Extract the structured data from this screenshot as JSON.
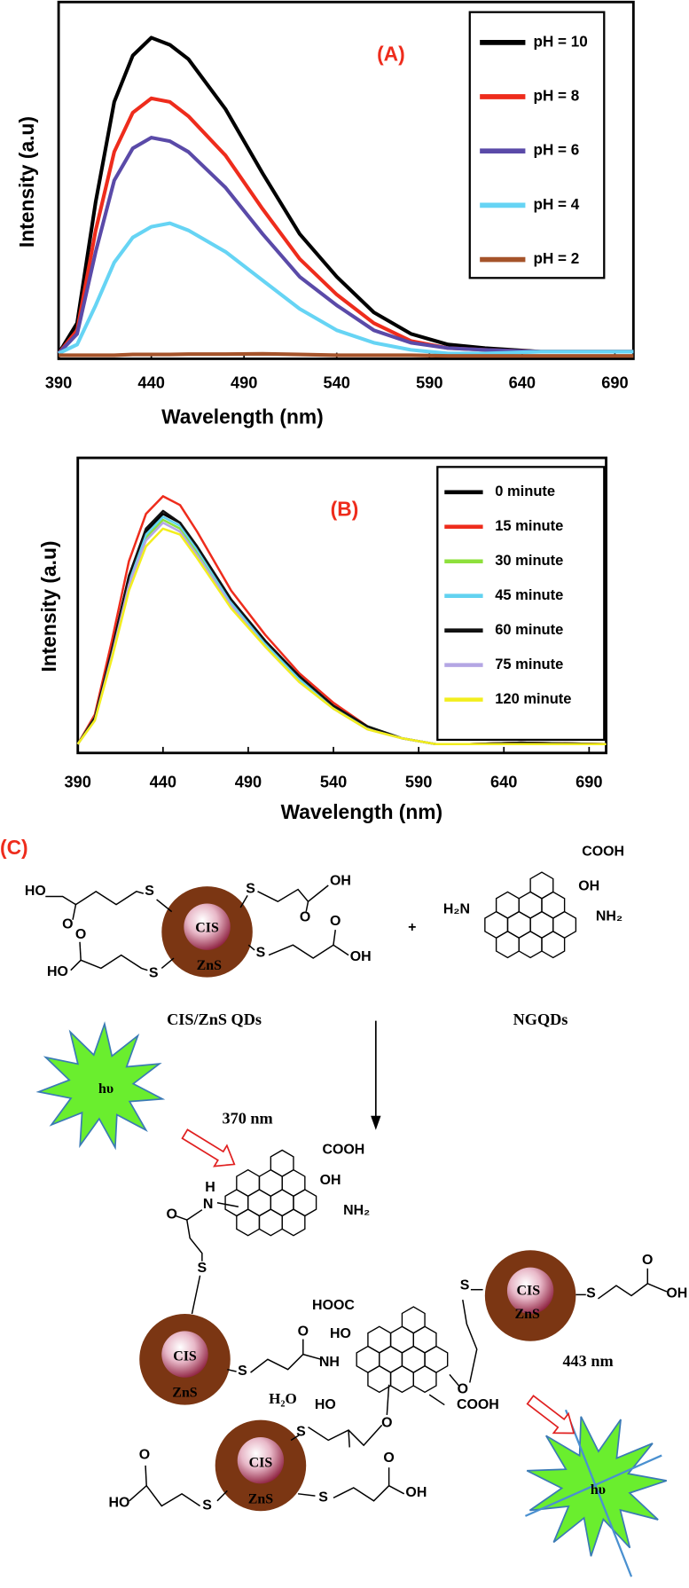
{
  "chart_data": [
    {
      "type": "line",
      "title": "(A)",
      "x_label": "Wavelength (nm)",
      "y_label": "Intensity (a.u)",
      "x": [
        390,
        400,
        410,
        420,
        430,
        440,
        450,
        460,
        480,
        500,
        520,
        540,
        560,
        580,
        600,
        620,
        650,
        700
      ],
      "xlim": [
        390,
        700
      ],
      "xticks": [
        390,
        440,
        490,
        540,
        590,
        640,
        690
      ],
      "ylim": [
        0,
        100
      ],
      "legend": "upper right",
      "series": [
        {
          "name": "pH = 10",
          "color": "#000000",
          "values": [
            1.5,
            10,
            44,
            72,
            85,
            90,
            88,
            84,
            70,
            52,
            35,
            23,
            13,
            7,
            4,
            3,
            2,
            2
          ]
        },
        {
          "name": "pH = 8",
          "color": "#ee2c1c",
          "values": [
            1.5,
            8,
            36,
            58,
            69,
            73,
            72,
            68,
            57,
            42,
            28,
            18,
            10,
            5,
            3,
            2.5,
            2,
            2
          ]
        },
        {
          "name": "pH = 6",
          "color": "#5a4aa8",
          "values": [
            1.5,
            7,
            30,
            50,
            59,
            62,
            61,
            58,
            48,
            35,
            23,
            15,
            8,
            4.5,
            3,
            2.5,
            2,
            2
          ]
        },
        {
          "name": "pH = 4",
          "color": "#66d4f4",
          "values": [
            1.5,
            4,
            15,
            27,
            34,
            37,
            38,
            36,
            30,
            22,
            14,
            8,
            4.5,
            2.5,
            1.5,
            1.5,
            2,
            2
          ]
        },
        {
          "name": "pH = 2",
          "color": "#a5532a",
          "values": [
            1,
            1,
            1,
            1,
            1.2,
            1.2,
            1.2,
            1.3,
            1.3,
            1.4,
            1.2,
            1,
            1,
            1,
            0.8,
            0.8,
            0.8,
            0.8
          ]
        }
      ]
    },
    {
      "type": "line",
      "title": "(B)",
      "x_label": "Wavelength (nm)",
      "y_label": "Intensity (a.u)",
      "x": [
        390,
        400,
        410,
        420,
        430,
        440,
        450,
        460,
        480,
        500,
        520,
        540,
        560,
        580,
        600,
        620,
        650,
        700
      ],
      "xlim": [
        390,
        700
      ],
      "xticks": [
        390,
        440,
        490,
        540,
        590,
        640,
        690
      ],
      "ylim": [
        0,
        100
      ],
      "legend": "upper right",
      "series": [
        {
          "name": "0 minute",
          "color": "#000000",
          "values": [
            3,
            12,
            35,
            60,
            75,
            81,
            78,
            70,
            52,
            38,
            26,
            16,
            9,
            5,
            3,
            3,
            3.5,
            3
          ]
        },
        {
          "name": "15 minute",
          "color": "#ee2c1c",
          "values": [
            3,
            13,
            38,
            65,
            81,
            87,
            84,
            75,
            55,
            40,
            27,
            17,
            9,
            5,
            3,
            3,
            3.5,
            3
          ]
        },
        {
          "name": "30 minute",
          "color": "#8ee03c",
          "values": [
            3,
            12,
            34,
            58,
            73,
            79,
            76,
            68,
            51,
            37,
            25,
            15,
            9,
            5,
            3,
            3,
            3,
            3
          ]
        },
        {
          "name": "45 minute",
          "color": "#62d2f0",
          "values": [
            3,
            12,
            34,
            59,
            74,
            80,
            77,
            69,
            51,
            37,
            25,
            15,
            9,
            5,
            3,
            3,
            3,
            3
          ]
        },
        {
          "name": "60 minute",
          "color": "#111111",
          "values": [
            3,
            12,
            35,
            60,
            76,
            82,
            78,
            70,
            52,
            38,
            26,
            16,
            9,
            5,
            3,
            3,
            3.5,
            3
          ]
        },
        {
          "name": "75 minute",
          "color": "#b4a6e4",
          "values": [
            3,
            11,
            33,
            57,
            72,
            78,
            75,
            67,
            50,
            36,
            24,
            15,
            8,
            5,
            3,
            3,
            3,
            3
          ]
        },
        {
          "name": "120 minute",
          "color": "#f2ee1e",
          "values": [
            3,
            11,
            32,
            55,
            70,
            76,
            74,
            66,
            49,
            36,
            24,
            15,
            8,
            5,
            3,
            3,
            3,
            3
          ]
        }
      ]
    }
  ],
  "scheme": {
    "labels": [
      "(C)",
      "HO",
      "O",
      "S",
      "O",
      "HO",
      "S",
      "S",
      "OH",
      "O",
      "S",
      "O",
      "OH",
      "CIS",
      "ZnS",
      "+",
      "COOH",
      "OH",
      "H₂N",
      "NH₂",
      "CIS/ZnS QDs",
      "NGQDs",
      "hυ",
      "370 nm",
      "COOH",
      "OH",
      "NH₂",
      "H",
      "N",
      "O",
      "S",
      "CIS",
      "ZnS",
      "S",
      "O",
      "NH",
      "HOOC",
      "HO",
      "HO",
      "H₂O",
      "O",
      "O",
      "COOH",
      "S",
      "CIS",
      "ZnS",
      "S",
      "O",
      "OH",
      "443 nm",
      "hυ",
      "CIS",
      "ZnS",
      "S",
      "S",
      "HO",
      "O",
      "S",
      "O",
      "OH"
    ]
  }
}
